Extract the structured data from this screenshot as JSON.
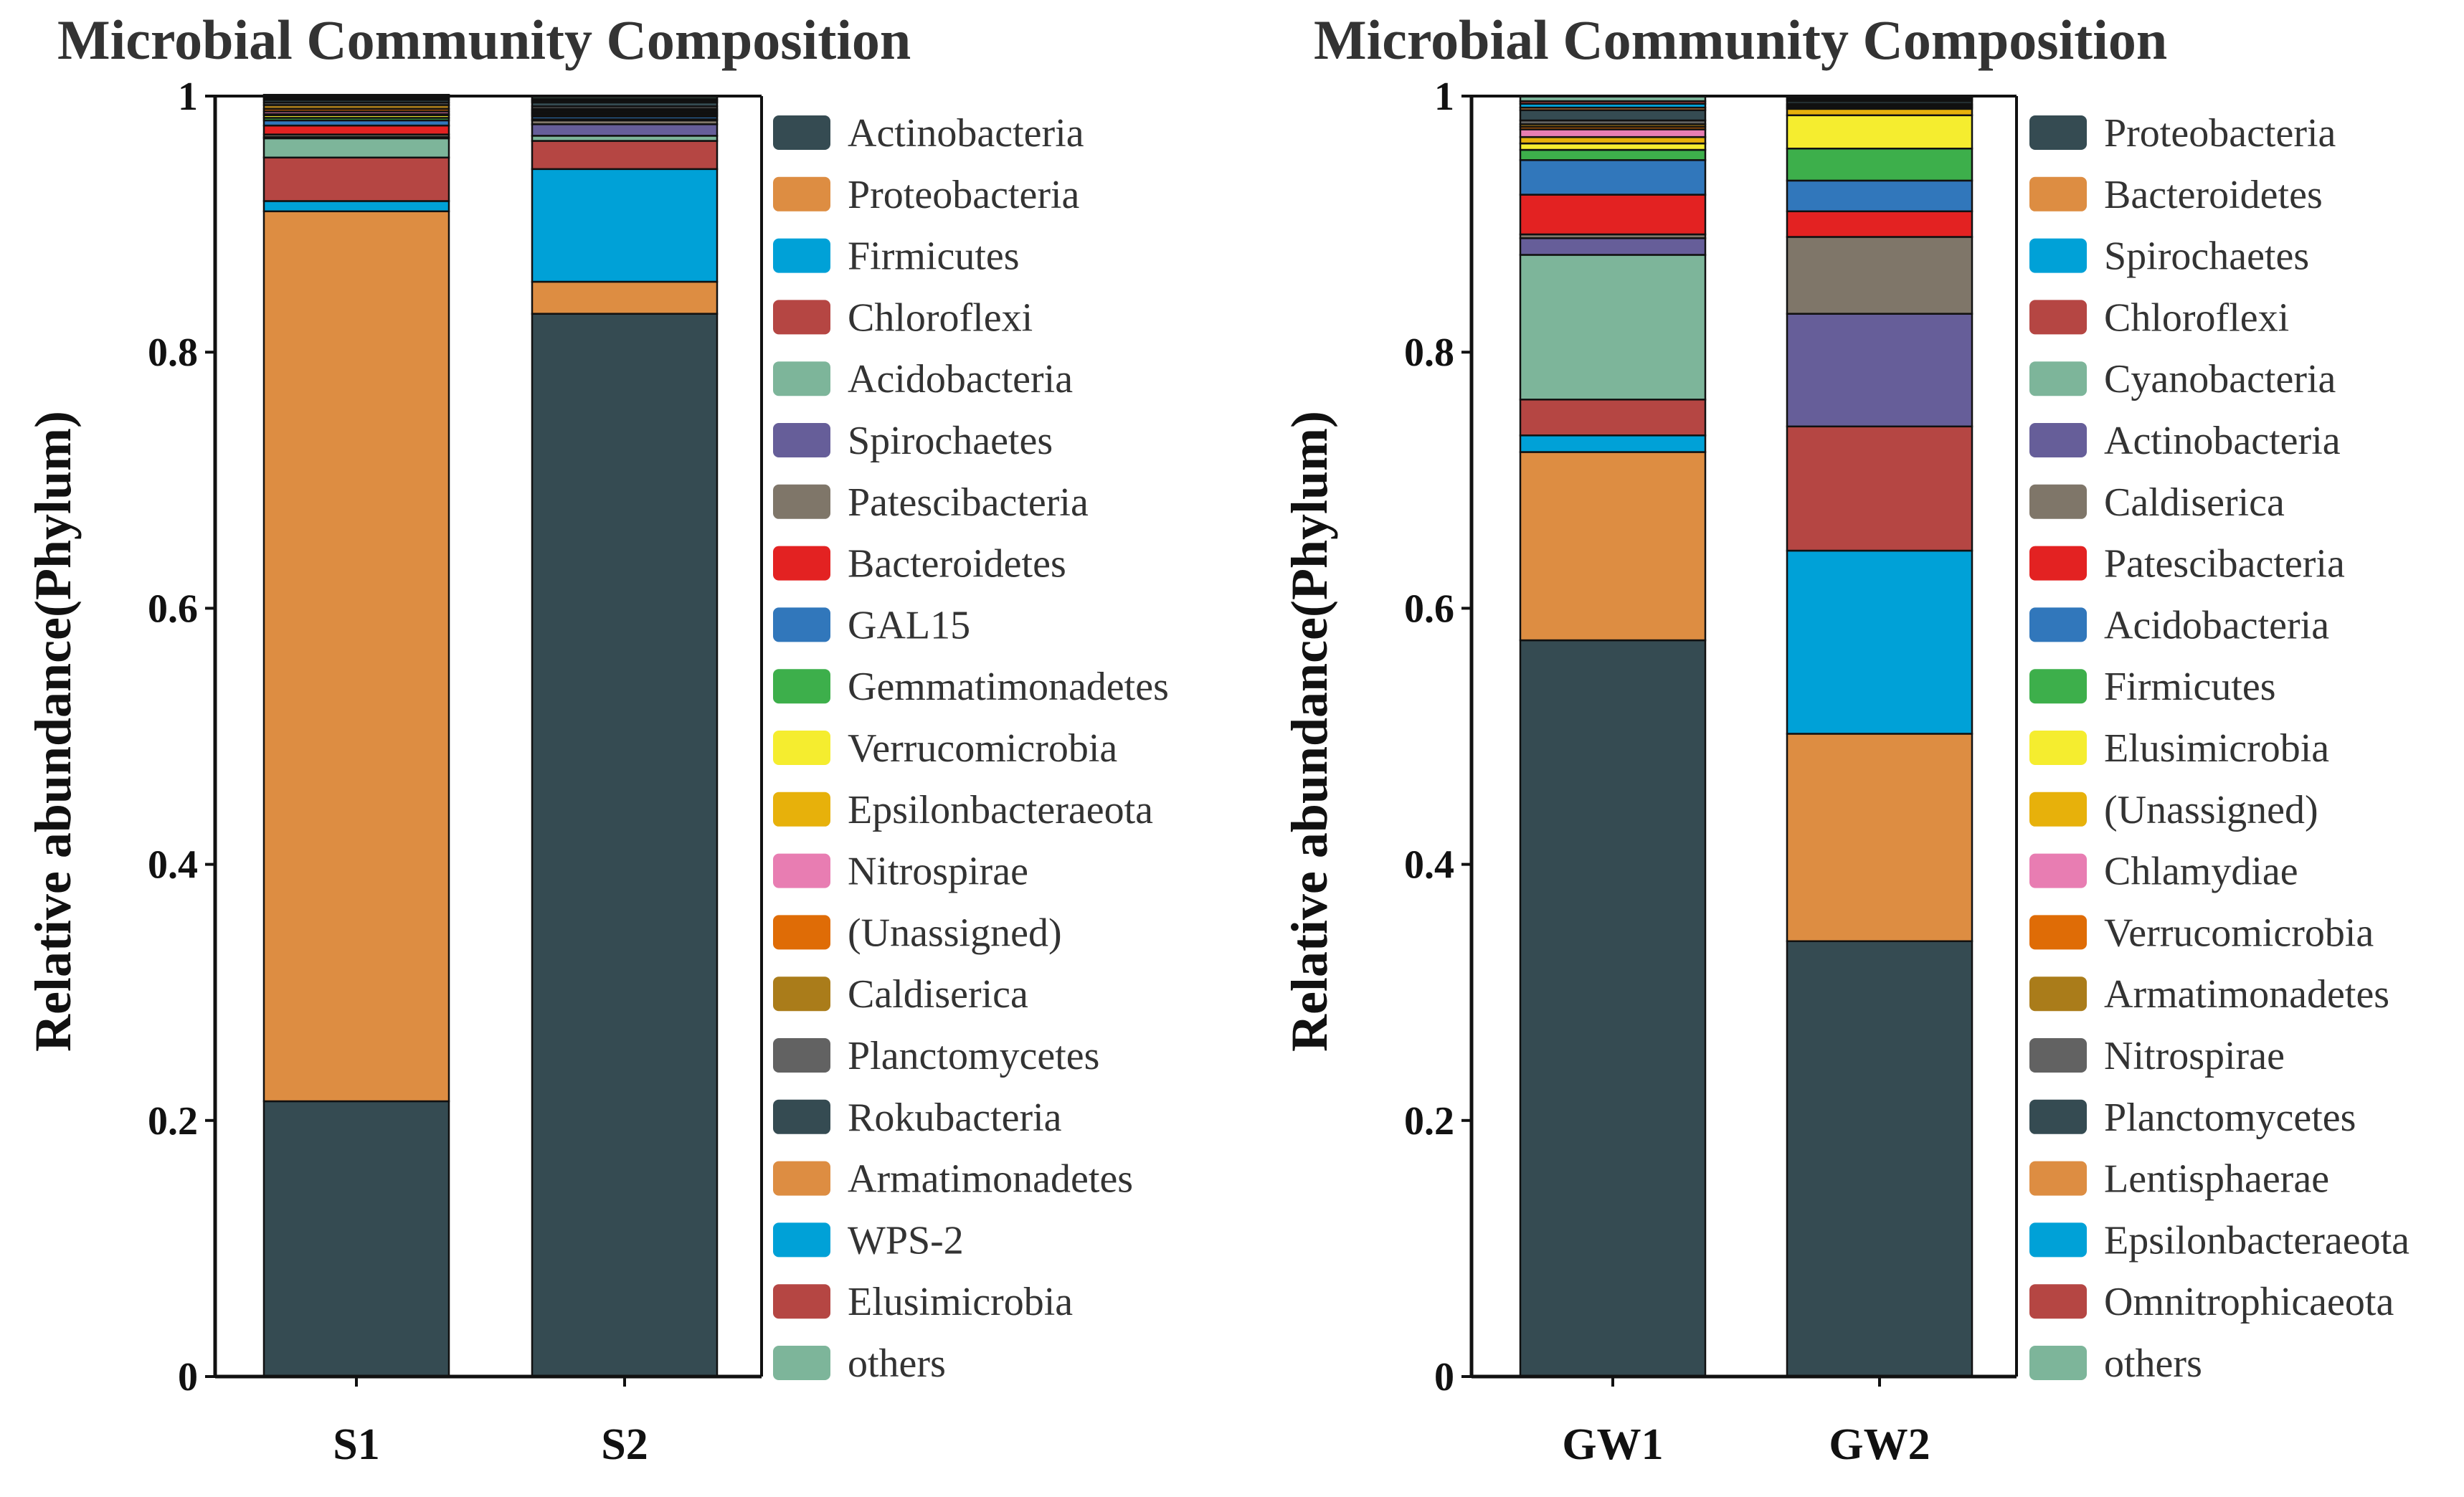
{
  "colors": {
    "palette": [
      "#354b52",
      "#dd8d42",
      "#00a1d7",
      "#b54643",
      "#7db59a",
      "#665e99",
      "#7f7669",
      "#e32222",
      "#3177bb",
      "#3daf4b",
      "#f5ed2f",
      "#e7b10b",
      "#e87db2",
      "#df6c06",
      "#aa7c1a",
      "#626262"
    ]
  },
  "chart_data": [
    {
      "type": "bar",
      "stacked": true,
      "title": "Microbial Community Composition",
      "ylabel": "Relative abundance(Phylum)",
      "xlabel": "",
      "ylim": [
        0,
        1
      ],
      "yticks": [
        "0",
        "0.2",
        "0.4",
        "0.6",
        "0.8",
        "1"
      ],
      "categories": [
        "S1",
        "S2"
      ],
      "series": [
        {
          "name": "Actinobacteria",
          "color_index": 0,
          "values": [
            0.215,
            0.83
          ]
        },
        {
          "name": "Proteobacteria",
          "color_index": 1,
          "values": [
            0.695,
            0.025
          ]
        },
        {
          "name": "Firmicutes",
          "color_index": 2,
          "values": [
            0.008,
            0.088
          ]
        },
        {
          "name": "Chloroflexi",
          "color_index": 3,
          "values": [
            0.034,
            0.022
          ]
        },
        {
          "name": "Acidobacteria",
          "color_index": 4,
          "values": [
            0.015,
            0.004
          ]
        },
        {
          "name": "Spirochaetes",
          "color_index": 5,
          "values": [
            0.001,
            0.009
          ]
        },
        {
          "name": "Patescibacteria",
          "color_index": 6,
          "values": [
            0.002,
            0.003
          ]
        },
        {
          "name": "Bacteroidetes",
          "color_index": 7,
          "values": [
            0.007,
            0.001
          ]
        },
        {
          "name": "GAL15",
          "color_index": 8,
          "values": [
            0.004,
            0.002
          ]
        },
        {
          "name": "Gemmatimonadetes",
          "color_index": 9,
          "values": [
            0.002,
            0.001
          ]
        },
        {
          "name": "Verrucomicrobia",
          "color_index": 10,
          "values": [
            0.002,
            0.001
          ]
        },
        {
          "name": "Epsilonbacteraeota",
          "color_index": 11,
          "values": [
            0.001,
            0.001
          ]
        },
        {
          "name": "Nitrospirae",
          "color_index": 12,
          "values": [
            0.002,
            0.001
          ]
        },
        {
          "name": "(Unassigned)",
          "color_index": 13,
          "values": [
            0.002,
            0.001
          ]
        },
        {
          "name": "Caldiserica",
          "color_index": 14,
          "values": [
            0.003,
            0.001
          ]
        },
        {
          "name": "Planctomycetes",
          "color_index": 15,
          "values": [
            0.002,
            0.002
          ]
        },
        {
          "name": "Rokubacteria",
          "color_index": 0,
          "values": [
            0.002,
            0.003
          ]
        },
        {
          "name": "Armatimonadetes",
          "color_index": 1,
          "values": [
            0.001,
            0.001
          ]
        },
        {
          "name": "WPS-2",
          "color_index": 2,
          "values": [
            0.001,
            0.001
          ]
        },
        {
          "name": "Elusimicrobia",
          "color_index": 3,
          "values": [
            0.001,
            0.001
          ]
        },
        {
          "name": "others",
          "color_index": 4,
          "values": [
            0.001,
            0.002
          ]
        }
      ]
    },
    {
      "type": "bar",
      "stacked": true,
      "title": "Microbial Community Composition",
      "ylabel": "Relative abundance(Phylum)",
      "xlabel": "",
      "ylim": [
        0,
        1
      ],
      "yticks": [
        "0",
        "0.2",
        "0.4",
        "0.6",
        "0.8",
        "1"
      ],
      "categories": [
        "GW1",
        "GW2"
      ],
      "series": [
        {
          "name": "Proteobacteria",
          "color_index": 0,
          "values": [
            0.575,
            0.34
          ]
        },
        {
          "name": "Bacteroidetes",
          "color_index": 1,
          "values": [
            0.147,
            0.162
          ]
        },
        {
          "name": "Spirochaetes",
          "color_index": 2,
          "values": [
            0.013,
            0.143
          ]
        },
        {
          "name": "Chloroflexi",
          "color_index": 3,
          "values": [
            0.028,
            0.097
          ]
        },
        {
          "name": "Cyanobacteria",
          "color_index": 4,
          "values": [
            0.113,
            0.0
          ]
        },
        {
          "name": "Actinobacteria",
          "color_index": 5,
          "values": [
            0.013,
            0.088
          ]
        },
        {
          "name": "Caldiserica",
          "color_index": 6,
          "values": [
            0.003,
            0.06
          ]
        },
        {
          "name": "Patescibacteria",
          "color_index": 7,
          "values": [
            0.031,
            0.02
          ]
        },
        {
          "name": "Acidobacteria",
          "color_index": 8,
          "values": [
            0.027,
            0.024
          ]
        },
        {
          "name": "Firmicutes",
          "color_index": 9,
          "values": [
            0.008,
            0.025
          ]
        },
        {
          "name": "Elusimicrobia",
          "color_index": 10,
          "values": [
            0.005,
            0.026
          ]
        },
        {
          "name": "(Unassigned)",
          "color_index": 11,
          "values": [
            0.005,
            0.005
          ]
        },
        {
          "name": "Chlamydiae",
          "color_index": 12,
          "values": [
            0.006,
            0.001
          ]
        },
        {
          "name": "Verrucomicrobia",
          "color_index": 13,
          "values": [
            0.002,
            0.001
          ]
        },
        {
          "name": "Armatimonadetes",
          "color_index": 14,
          "values": [
            0.002,
            0.001
          ]
        },
        {
          "name": "Nitrospirae",
          "color_index": 15,
          "values": [
            0.003,
            0.001
          ]
        },
        {
          "name": "Planctomycetes",
          "color_index": 0,
          "values": [
            0.008,
            0.002
          ]
        },
        {
          "name": "Lentisphaerae",
          "color_index": 1,
          "values": [
            0.002,
            0.001
          ]
        },
        {
          "name": "Epsilonbacteraeota",
          "color_index": 2,
          "values": [
            0.003,
            0.001
          ]
        },
        {
          "name": "Omnitrophicaeota",
          "color_index": 3,
          "values": [
            0.002,
            0.001
          ]
        },
        {
          "name": "others",
          "color_index": 4,
          "values": [
            0.004,
            0.001
          ]
        }
      ]
    }
  ]
}
